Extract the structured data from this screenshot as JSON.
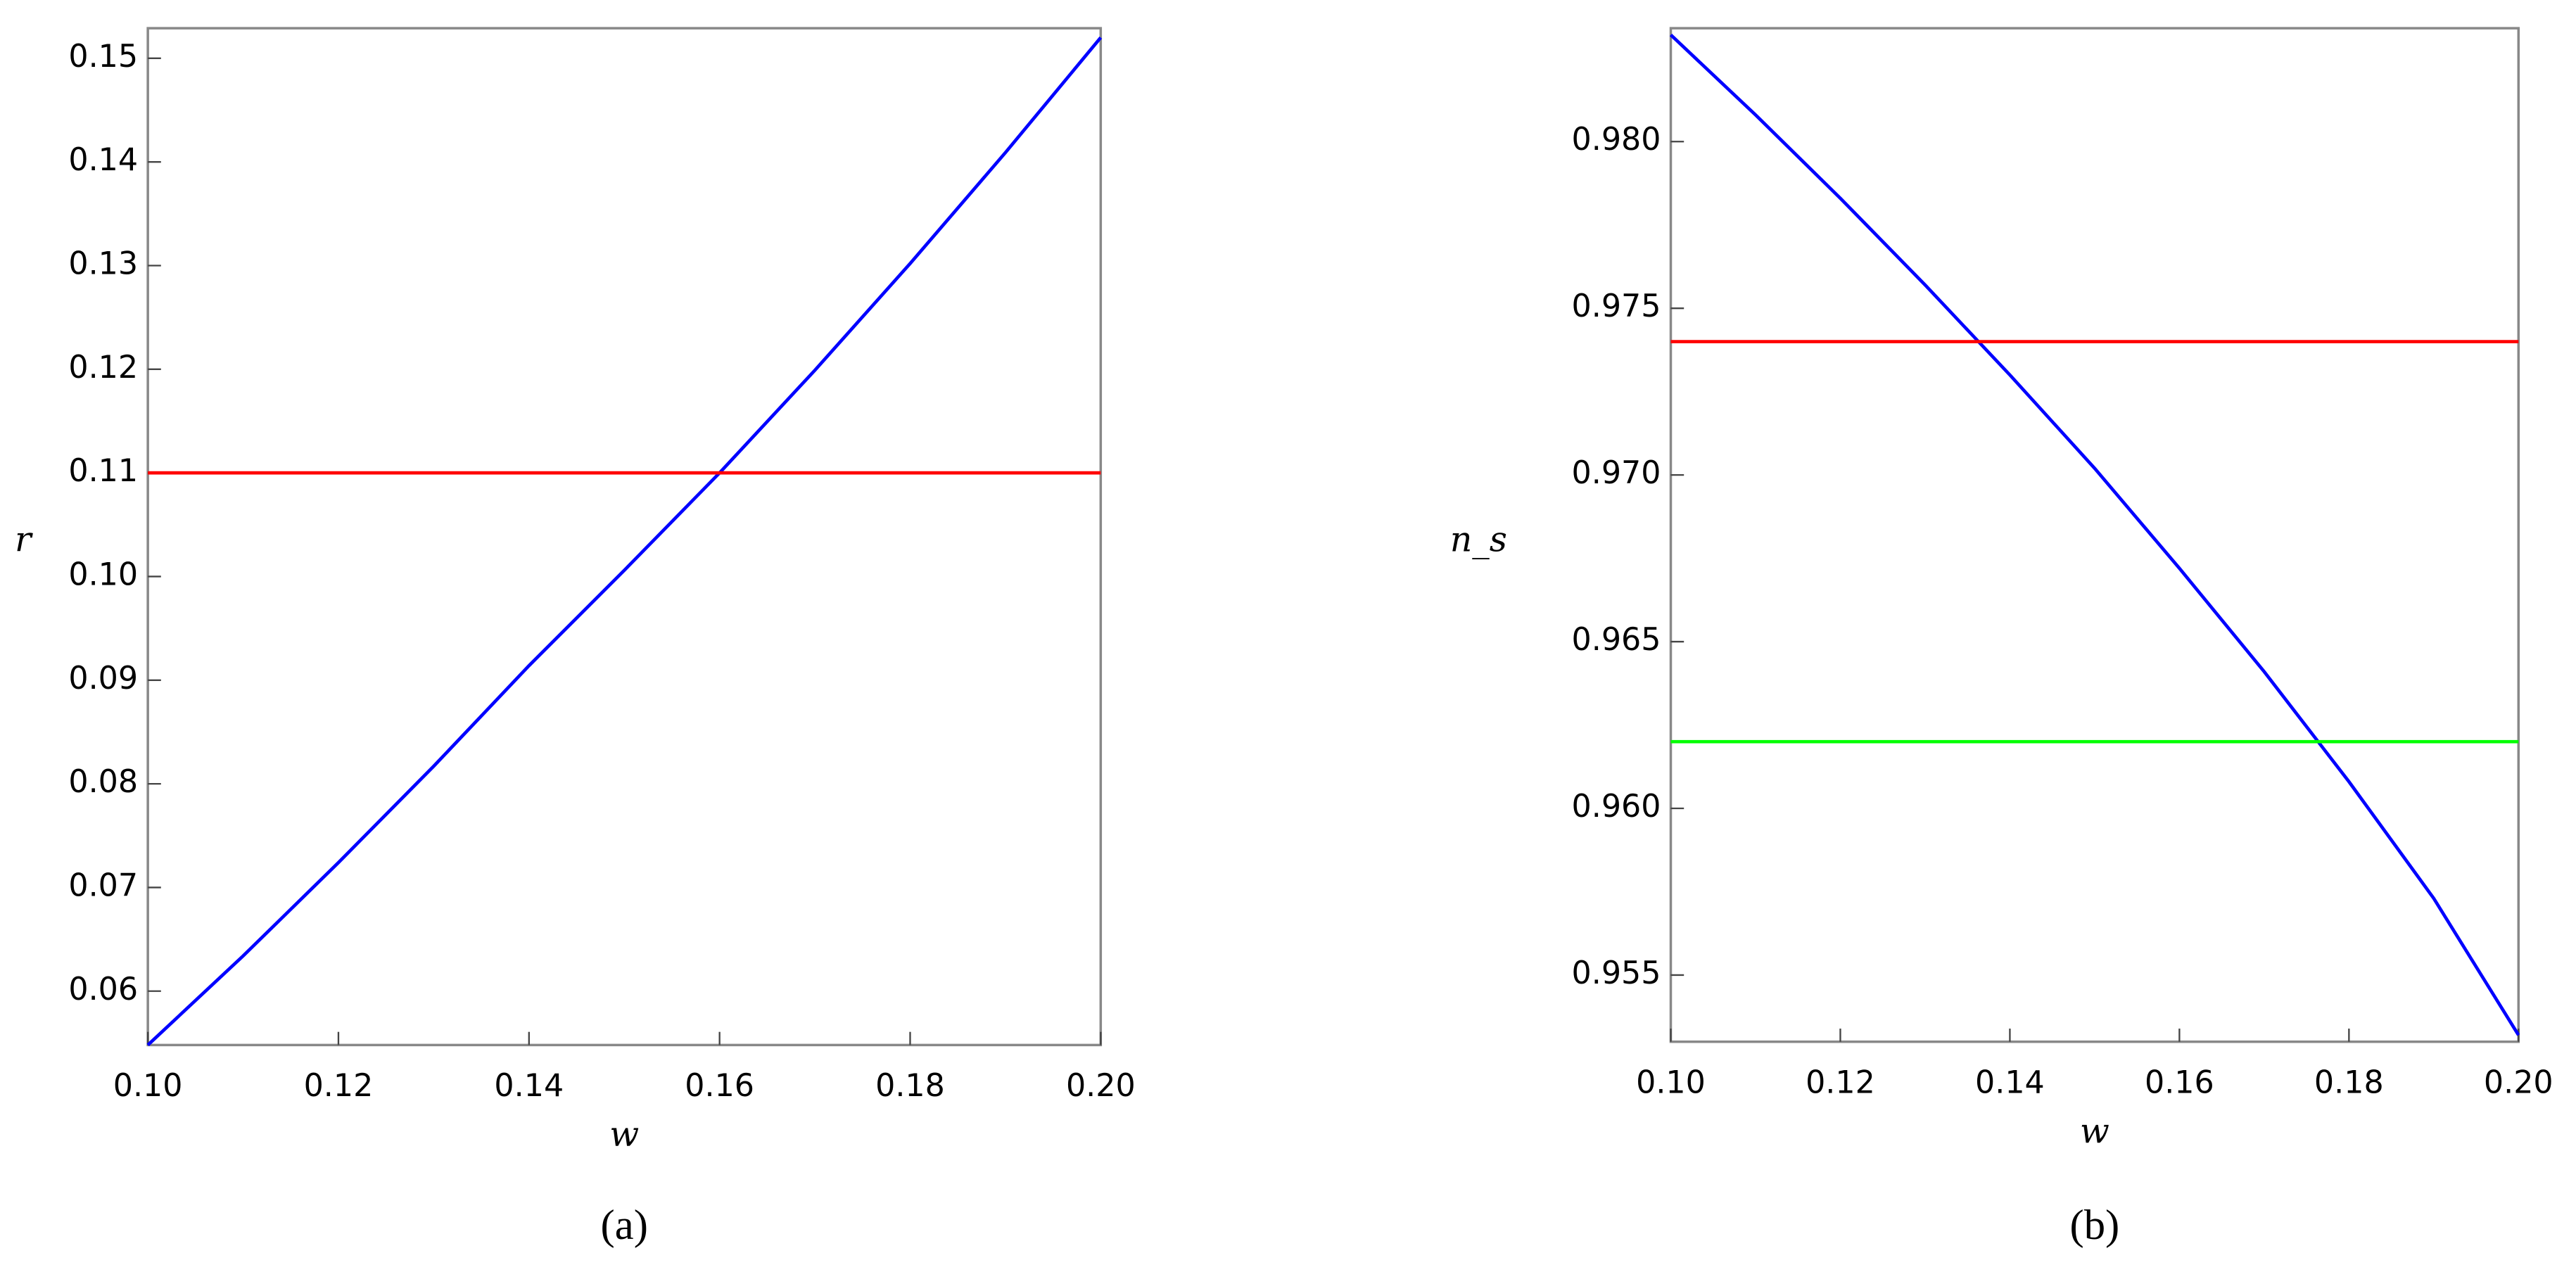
{
  "chart_data": [
    {
      "type": "line",
      "caption": "(a)",
      "xlabel": "w",
      "ylabel": "r",
      "xlim": [
        0.1,
        0.2
      ],
      "ylim": [
        0.0548,
        0.1529
      ],
      "xticks": [
        {
          "value": 0.1,
          "label": "0.10"
        },
        0.12,
        0.14,
        0.16,
        0.18,
        {
          "value": 0.2,
          "label": "0.20"
        }
      ],
      "yticks": [
        0.06,
        0.07,
        0.08,
        0.09,
        {
          "value": 0.1,
          "label": "0.10"
        },
        0.11,
        0.12,
        0.13,
        0.14,
        0.15
      ],
      "series": [
        {
          "color": "#0000ff",
          "x": [
            0.1,
            0.11,
            0.12,
            0.13,
            0.14,
            0.15,
            0.16,
            0.17,
            0.18,
            0.19,
            0.2
          ],
          "values": [
            0.0548,
            0.0634,
            0.0724,
            0.0817,
            0.0914,
            0.1006,
            0.11,
            0.1199,
            0.1302,
            0.1409,
            0.152
          ]
        },
        {
          "color": "#ff0000",
          "x": [
            0.1,
            0.2
          ],
          "values": [
            0.11,
            0.11
          ]
        }
      ]
    },
    {
      "type": "line",
      "caption": "(b)",
      "xlabel": "w",
      "ylabel": "n_s",
      "xlim": [
        0.1,
        0.2
      ],
      "ylim": [
        0.953,
        0.9834
      ],
      "xticks": [
        {
          "value": 0.1,
          "label": "0.10"
        },
        0.12,
        0.14,
        0.16,
        0.18,
        {
          "value": 0.2,
          "label": "0.20"
        }
      ],
      "yticks": [
        0.955,
        {
          "value": 0.96,
          "label": "0.960"
        },
        0.965,
        {
          "value": 0.97,
          "label": "0.970"
        },
        0.975,
        {
          "value": 0.98,
          "label": "0.980"
        }
      ],
      "series": [
        {
          "color": "#0000ff",
          "x": [
            0.1,
            0.11,
            0.12,
            0.13,
            0.14,
            0.15,
            0.16,
            0.17,
            0.18,
            0.19,
            0.2
          ],
          "values": [
            0.9832,
            0.9808,
            0.9783,
            0.9757,
            0.973,
            0.9702,
            0.9672,
            0.9641,
            0.9608,
            0.9573,
            0.9532
          ]
        },
        {
          "color": "#ff0000",
          "x": [
            0.1,
            0.2
          ],
          "values": [
            0.974,
            0.974
          ]
        },
        {
          "color": "#00ff00",
          "x": [
            0.1,
            0.2
          ],
          "values": [
            0.962,
            0.962
          ]
        }
      ]
    }
  ]
}
